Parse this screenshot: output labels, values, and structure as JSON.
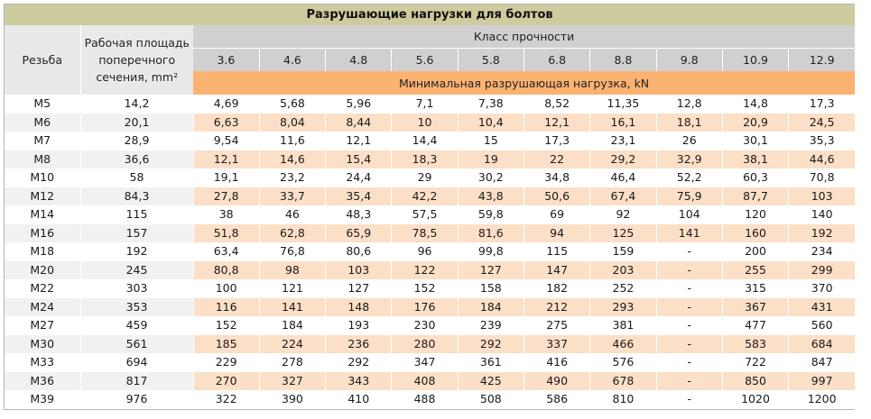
{
  "table": {
    "title": "Разрушающие нагрузки для болтов",
    "headers": {
      "thread": "Резьба",
      "area": "Рабочая площадь поперечного сечения, mm²",
      "strength_class": "Класс прочности",
      "min_load": "Минимальная разрушающая нагрузка, kN"
    },
    "classes": [
      "3.6",
      "4.6",
      "4.8",
      "5.6",
      "5.8",
      "6.8",
      "8.8",
      "9.8",
      "10.9",
      "12.9"
    ],
    "rows": [
      {
        "thread": "M5",
        "area": "14,2",
        "values": [
          "4,69",
          "5,68",
          "5,96",
          "7,1",
          "7,38",
          "8,52",
          "11,35",
          "12,8",
          "14,8",
          "17,3"
        ]
      },
      {
        "thread": "M6",
        "area": "20,1",
        "values": [
          "6,63",
          "8,04",
          "8,44",
          "10",
          "10,4",
          "12,1",
          "16,1",
          "18,1",
          "20,9",
          "24,5"
        ]
      },
      {
        "thread": "M7",
        "area": "28,9",
        "values": [
          "9,54",
          "11,6",
          "12,1",
          "14,4",
          "15",
          "17,3",
          "23,1",
          "26",
          "30,1",
          "35,3"
        ]
      },
      {
        "thread": "M8",
        "area": "36,6",
        "values": [
          "12,1",
          "14,6",
          "15,4",
          "18,3",
          "19",
          "22",
          "29,2",
          "32,9",
          "38,1",
          "44,6"
        ]
      },
      {
        "thread": "M10",
        "area": "58",
        "values": [
          "19,1",
          "23,2",
          "24,4",
          "29",
          "30,2",
          "34,8",
          "46,4",
          "52,2",
          "60,3",
          "70,8"
        ]
      },
      {
        "thread": "M12",
        "area": "84,3",
        "values": [
          "27,8",
          "33,7",
          "35,4",
          "42,2",
          "43,8",
          "50,6",
          "67,4",
          "75,9",
          "87,7",
          "103"
        ]
      },
      {
        "thread": "M14",
        "area": "115",
        "values": [
          "38",
          "46",
          "48,3",
          "57,5",
          "59,8",
          "69",
          "92",
          "104",
          "120",
          "140"
        ]
      },
      {
        "thread": "M16",
        "area": "157",
        "values": [
          "51,8",
          "62,8",
          "65,9",
          "78,5",
          "81,6",
          "94",
          "125",
          "141",
          "160",
          "192"
        ]
      },
      {
        "thread": "M18",
        "area": "192",
        "values": [
          "63,4",
          "76,8",
          "80,6",
          "96",
          "99,8",
          "115",
          "159",
          "-",
          "200",
          "234"
        ]
      },
      {
        "thread": "M20",
        "area": "245",
        "values": [
          "80,8",
          "98",
          "103",
          "122",
          "127",
          "147",
          "203",
          "-",
          "255",
          "299"
        ]
      },
      {
        "thread": "M22",
        "area": "303",
        "values": [
          "100",
          "121",
          "127",
          "152",
          "158",
          "182",
          "252",
          "-",
          "315",
          "370"
        ]
      },
      {
        "thread": "M24",
        "area": "353",
        "values": [
          "116",
          "141",
          "148",
          "176",
          "184",
          "212",
          "293",
          "-",
          "367",
          "431"
        ]
      },
      {
        "thread": "M27",
        "area": "459",
        "values": [
          "152",
          "184",
          "193",
          "230",
          "239",
          "275",
          "381",
          "-",
          "477",
          "560"
        ]
      },
      {
        "thread": "M30",
        "area": "561",
        "values": [
          "185",
          "224",
          "236",
          "280",
          "292",
          "337",
          "466",
          "-",
          "583",
          "684"
        ]
      },
      {
        "thread": "M33",
        "area": "694",
        "values": [
          "229",
          "278",
          "292",
          "347",
          "361",
          "416",
          "576",
          "-",
          "722",
          "847"
        ]
      },
      {
        "thread": "M36",
        "area": "817",
        "values": [
          "270",
          "327",
          "343",
          "408",
          "425",
          "490",
          "678",
          "-",
          "850",
          "997"
        ]
      },
      {
        "thread": "M39",
        "area": "976",
        "values": [
          "322",
          "390",
          "410",
          "488",
          "508",
          "586",
          "810",
          "-",
          "1020",
          "1200"
        ]
      }
    ]
  },
  "colors": {
    "title_bg": "#cdcc9e",
    "class_header_bg": "#d0d0d0",
    "left_header_bg": "#e9e9e9",
    "load_header_bg": "#fcb271",
    "stripe_value_bg": "#fbdfc6",
    "stripe_left_bg": "#f1f1f1"
  }
}
